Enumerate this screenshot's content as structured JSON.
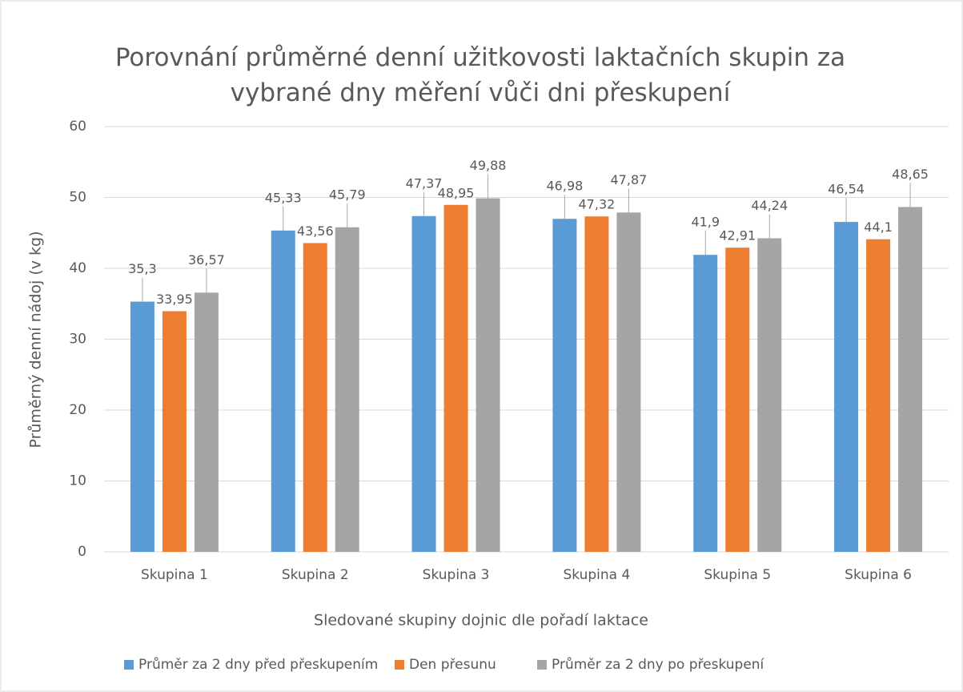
{
  "chart_data": {
    "type": "bar",
    "title": "Porovnání průměrné denní užitkovosti laktačních skupin za vybrané dny měření vůči dni přeskupení",
    "x_label": "Sledované skupiny dojnic dle pořadí laktace",
    "y_label": "Průměrný denní nádoj (v kg)",
    "categories": [
      "Skupina 1",
      "Skupina 2",
      "Skupina 3",
      "Skupina 4",
      "Skupina 5",
      "Skupina 6"
    ],
    "series": [
      {
        "name": "Průměr za 2 dny před přeskupením",
        "color": "#5b9bd5",
        "values": [
          35.3,
          45.33,
          47.37,
          46.98,
          41.9,
          46.54
        ],
        "value_labels": [
          "35,3",
          "45,33",
          "47,37",
          "46,98",
          "41,9",
          "46,54"
        ]
      },
      {
        "name": "Den přesunu",
        "color": "#ed7d31",
        "values": [
          33.95,
          43.56,
          48.95,
          47.32,
          42.91,
          44.1
        ],
        "value_labels": [
          "33,95",
          "43,56",
          "48,95",
          "47,32",
          "42,91",
          "44,1"
        ]
      },
      {
        "name": "Průměr za 2 dny po přeskupení",
        "color": "#a5a5a5",
        "values": [
          36.57,
          45.79,
          49.88,
          47.87,
          44.24,
          48.65
        ],
        "value_labels": [
          "36,57",
          "45,79",
          "49,88",
          "47,87",
          "44,24",
          "48,65"
        ]
      }
    ],
    "ylim": [
      0,
      60
    ],
    "yticks": [
      0,
      10,
      20,
      30,
      40,
      50,
      60
    ],
    "grid": true,
    "legend": "bottom"
  }
}
